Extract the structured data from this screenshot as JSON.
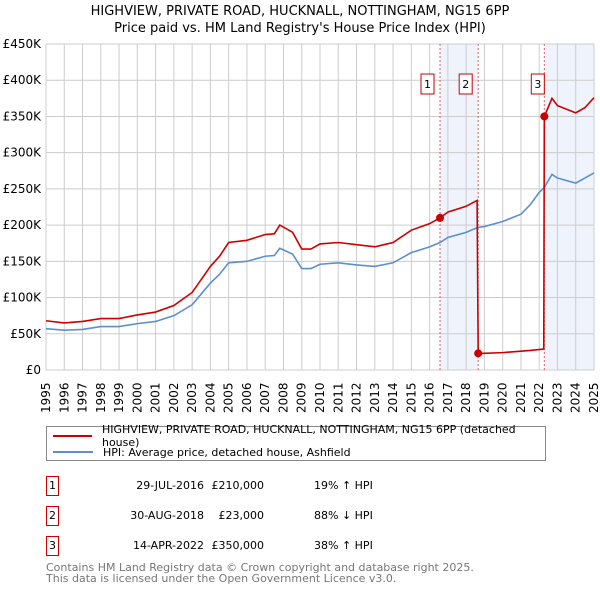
{
  "chart_data": {
    "type": "line",
    "title": "HIGHVIEW, PRIVATE ROAD, HUCKNALL, NOTTINGHAM, NG15 6PP",
    "subtitle": "Price paid vs. HM Land Registry's House Price Index (HPI)",
    "xlim": [
      1995,
      2025
    ],
    "ylim": [
      0,
      450000
    ],
    "grid": true,
    "y_ticks": [
      {
        "v": 0,
        "label": "£0"
      },
      {
        "v": 50000,
        "label": "£50K"
      },
      {
        "v": 100000,
        "label": "£100K"
      },
      {
        "v": 150000,
        "label": "£150K"
      },
      {
        "v": 200000,
        "label": "£200K"
      },
      {
        "v": 250000,
        "label": "£250K"
      },
      {
        "v": 300000,
        "label": "£300K"
      },
      {
        "v": 350000,
        "label": "£350K"
      },
      {
        "v": 400000,
        "label": "£400K"
      },
      {
        "v": 450000,
        "label": "£450K"
      }
    ],
    "x_ticks": [
      "1995",
      "1996",
      "1997",
      "1998",
      "1999",
      "2000",
      "2001",
      "2002",
      "2003",
      "2004",
      "2005",
      "2006",
      "2007",
      "2008",
      "2009",
      "2010",
      "2011",
      "2012",
      "2013",
      "2014",
      "2015",
      "2016",
      "2017",
      "2018",
      "2019",
      "2020",
      "2021",
      "2022",
      "2023",
      "2024",
      "2025"
    ],
    "series": [
      {
        "name": "HIGHVIEW, PRIVATE ROAD, HUCKNALL, NOTTINGHAM, NG15 6PP (detached house)",
        "color": "#cc0000",
        "x": [
          1995,
          1996,
          1997,
          1998,
          1999,
          2000,
          2001,
          2002,
          2003,
          2003.5,
          2004,
          2004.5,
          2005,
          2006,
          2007,
          2007.5,
          2007.8,
          2008.5,
          2009,
          2009.5,
          2010,
          2011,
          2012,
          2013,
          2014,
          2015,
          2016,
          2016.57,
          2017,
          2018,
          2018.6,
          2018.66,
          2019,
          2020,
          2021,
          2021.5,
          2022.25,
          2022.28,
          2022.7,
          2023,
          2024,
          2024.5,
          2025
        ],
        "y": [
          68000,
          65000,
          67000,
          71000,
          71000,
          76000,
          80000,
          89000,
          107000,
          125000,
          143000,
          157000,
          176000,
          179000,
          187000,
          188000,
          200000,
          190000,
          167000,
          167000,
          174000,
          176000,
          173000,
          170000,
          176000,
          193000,
          202000,
          210000,
          218000,
          226000,
          234000,
          23000,
          23000,
          24000,
          26000,
          27000,
          29000,
          350000,
          375000,
          365000,
          355000,
          362000,
          376000
        ]
      },
      {
        "name": "HPI: Average price, detached house, Ashfield",
        "color": "#5b8fd0",
        "x": [
          1995,
          1996,
          1997,
          1998,
          1999,
          2000,
          2001,
          2002,
          2003,
          2003.5,
          2004,
          2004.5,
          2005,
          2006,
          2007,
          2007.5,
          2007.8,
          2008.5,
          2009,
          2009.5,
          2010,
          2011,
          2012,
          2013,
          2014,
          2015,
          2016,
          2016.57,
          2017,
          2018,
          2018.66,
          2019,
          2020,
          2021,
          2021.5,
          2022,
          2022.28,
          2022.7,
          2023,
          2024,
          2024.5,
          2025
        ],
        "y": [
          57000,
          55000,
          56000,
          60000,
          60000,
          64000,
          67000,
          75000,
          90000,
          105000,
          120000,
          132000,
          148000,
          150000,
          157000,
          158000,
          168000,
          160000,
          140000,
          140000,
          146000,
          148000,
          145000,
          143000,
          148000,
          162000,
          170000,
          176000,
          183000,
          190000,
          197000,
          198000,
          205000,
          215000,
          228000,
          245000,
          252000,
          270000,
          265000,
          258000,
          265000,
          272000
        ]
      }
    ],
    "sales": [
      {
        "id": "1",
        "x": 2016.57,
        "y": 210000,
        "date": "29-JUL-2016",
        "price": "£210,000",
        "hpi": "19% ↑ HPI"
      },
      {
        "id": "2",
        "x": 2018.66,
        "y": 23000,
        "date": "30-AUG-2018",
        "price": "£23,000",
        "hpi": "88% ↓ HPI"
      },
      {
        "id": "3",
        "x": 2022.28,
        "y": 350000,
        "date": "14-APR-2022",
        "price": "£350,000",
        "hpi": "38% ↑ HPI"
      }
    ],
    "shaded_ranges": [
      [
        2016.57,
        2018.66
      ],
      [
        2022.28,
        2025
      ]
    ],
    "legend_position": "bottom"
  },
  "footer": [
    "Contains HM Land Registry data © Crown copyright and database right 2025.",
    "This data is licensed under the Open Government Licence v3.0."
  ]
}
